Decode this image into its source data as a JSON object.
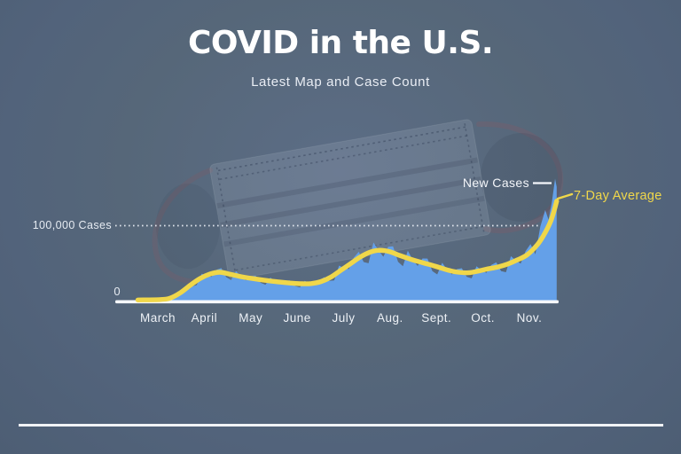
{
  "header": {
    "title": "COVID in the U.S.",
    "subtitle": "Latest Map and Case Count"
  },
  "chart": {
    "gridline_label": "100,000 Cases",
    "zero_label": "0",
    "annotation_new_cases": "New Cases",
    "annotation_seven_day_avg": "7-Day Average"
  },
  "decor": {
    "background_illustration": "surgical-mask-photo"
  },
  "colors": {
    "background": "#57687f",
    "new_cases_area": "#64a0e8",
    "seven_day_avg_line": "#f0d74a",
    "axis_and_text": "#ffffff",
    "gridline": "#e9edf4"
  },
  "chart_data": {
    "type": "area",
    "title": "COVID in the U.S.",
    "subtitle": "Latest Map and Case Count",
    "xlabel": "",
    "ylabel": "",
    "x_axis": {
      "unit": "days since March 1, 2020",
      "tick_labels": [
        "March",
        "April",
        "May",
        "June",
        "July",
        "Aug.",
        "Sept.",
        "Oct.",
        "Nov."
      ]
    },
    "y_axis": {
      "unit": "daily new cases, thousands",
      "gridline_value_thousands": 100,
      "gridline_label": "100,000 Cases",
      "zero_label": "0",
      "range_thousands": [
        0,
        170
      ],
      "grid": "single dotted line at 100,000"
    },
    "legend_position": "inline annotations at right end of series",
    "series": [
      {
        "name": "New Cases",
        "type": "area",
        "color": "#64a0e8",
        "x_days": [
          0,
          3,
          6,
          9,
          12,
          15,
          18,
          21,
          24,
          27,
          30,
          33,
          36,
          39,
          42,
          45,
          48,
          51,
          54,
          57,
          60,
          63,
          66,
          69,
          72,
          75,
          78,
          81,
          84,
          87,
          90,
          93,
          96,
          99,
          102,
          105,
          108,
          111,
          114,
          117,
          120,
          123,
          126,
          129,
          132,
          135,
          138,
          141,
          144,
          147,
          150,
          153,
          156,
          159,
          162,
          165,
          168,
          171,
          174,
          177,
          180,
          183,
          186,
          189,
          192,
          195,
          198,
          201,
          204,
          207,
          210,
          213,
          216,
          219,
          222,
          225,
          228,
          231,
          234,
          237,
          240,
          243,
          246,
          249,
          251,
          253,
          255,
          256
        ],
        "values_thousands": [
          0.2,
          0.3,
          0.5,
          0.7,
          0.6,
          0.9,
          2.7,
          4.2,
          6.8,
          12.8,
          19.4,
          18.3,
          20.3,
          35.5,
          33.0,
          31.2,
          40.7,
          43.0,
          30.9,
          27.0,
          38.9,
          31.5,
          26.5,
          32.2,
          32.7,
          23.3,
          20.7,
          30.4,
          25.0,
          21.4,
          26.0,
          26.5,
          19.1,
          17.2,
          26.1,
          22.2,
          20.4,
          27.0,
          30.9,
          25.8,
          26.5,
          46.4,
          43.0,
          41.8,
          57.2,
          65.0,
          51.2,
          49.5,
          77.5,
          66.9,
          58.3,
          71.8,
          72.1,
          51.6,
          45.6,
          66.4,
          54.0,
          46.0,
          56.0,
          55.8,
          38.9,
          34.5,
          50.3,
          40.7,
          34.5,
          41.7,
          42.8,
          31.4,
          29.3,
          45.5,
          40.0,
          36.5,
          47.1,
          50.7,
          39.1,
          37.5,
          59.0,
          53.1,
          49.2,
          66.0,
          75.3,
          61.6,
          99,
          121,
          108,
          131,
          163,
          152
        ]
      },
      {
        "name": "7-Day Average",
        "type": "line",
        "color": "#f0d74a",
        "x_days": [
          0,
          14,
          20,
          26,
          32,
          38,
          44,
          50,
          56,
          62,
          70,
          78,
          86,
          93,
          100,
          106,
          112,
          118,
          124,
          130,
          136,
          142,
          148,
          154,
          160,
          166,
          172,
          178,
          184,
          190,
          196,
          202,
          208,
          214,
          220,
          226,
          232,
          238,
          244,
          248,
          252,
          254,
          256
        ],
        "values_thousands": [
          0.2,
          0.8,
          3,
          10,
          20,
          29,
          35,
          37.5,
          35,
          32,
          29,
          26.5,
          24.5,
          23,
          22,
          22.3,
          25,
          31,
          40,
          49,
          58,
          64.5,
          67,
          65,
          60,
          55.5,
          51.5,
          48,
          44,
          40,
          37.5,
          36.8,
          39,
          42,
          44.5,
          48.5,
          54,
          61,
          74,
          87,
          104,
          117,
          133
        ]
      }
    ]
  }
}
